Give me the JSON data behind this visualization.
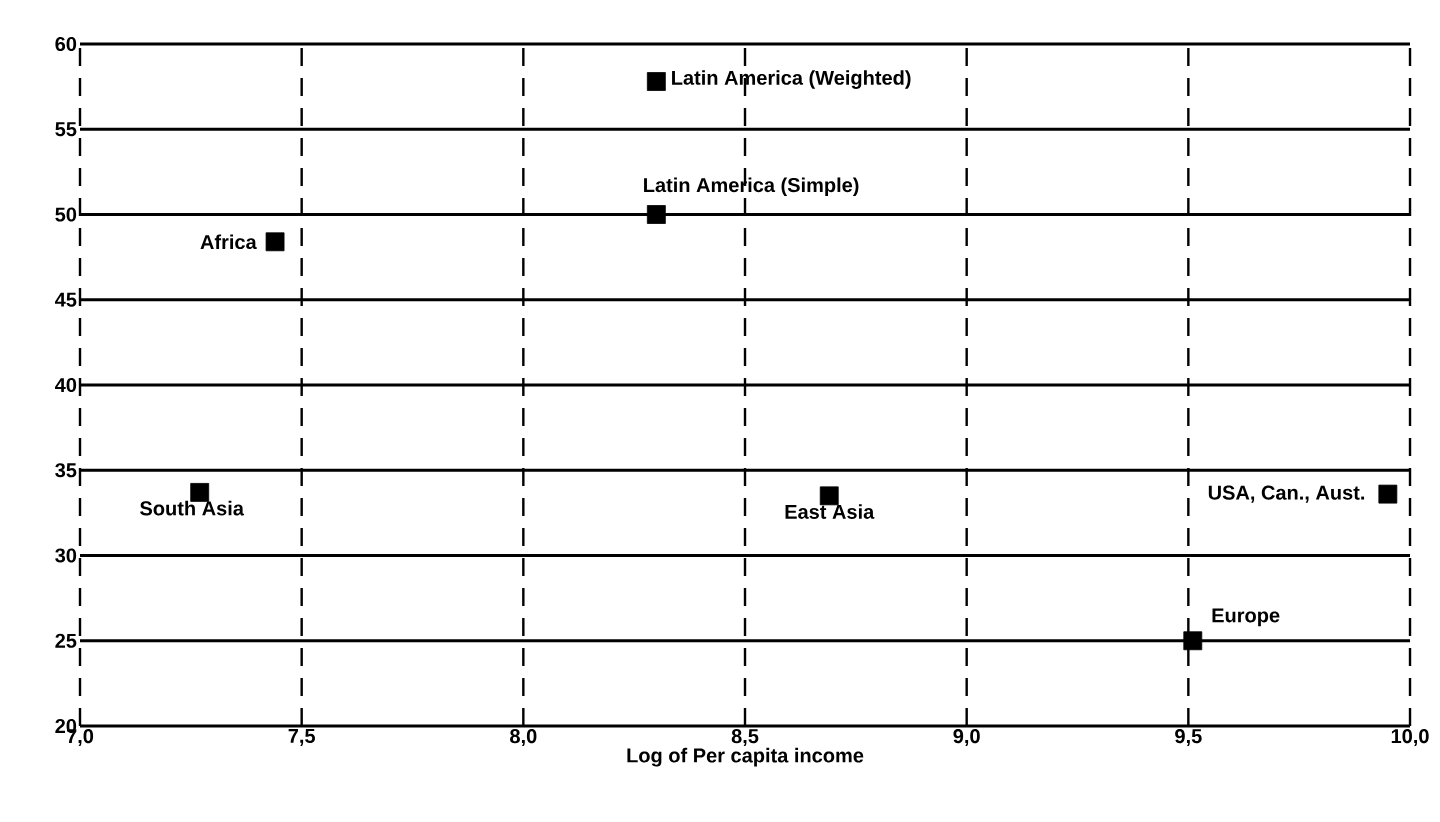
{
  "chart_data": {
    "type": "scatter",
    "xlabel": "Log of Per capita income",
    "x": [
      8.3,
      8.3,
      7.44,
      7.27,
      8.69,
      9.95,
      9.51
    ],
    "values": [
      57.8,
      50.0,
      48.4,
      33.7,
      33.5,
      33.6,
      25.0
    ],
    "color": "#000000",
    "marker": "square",
    "grid": true,
    "xlim": [
      7,
      10
    ],
    "ylim": [
      20,
      60
    ],
    "xticks": [
      {
        "value": 7,
        "label": "7,0"
      },
      {
        "value": 7.5,
        "label": "7,5"
      },
      {
        "value": 8,
        "label": "8,0"
      },
      {
        "value": 8.5,
        "label": "8,5"
      },
      {
        "value": 9,
        "label": "9,0"
      },
      {
        "value": 9.5,
        "label": "9,5"
      },
      {
        "value": 10,
        "label": "10,0"
      }
    ],
    "yticks": [
      20,
      25,
      30,
      35,
      40,
      45,
      50,
      55,
      60
    ],
    "annotations": [
      {
        "text": "Latin America (Weighted)",
        "x": 8.3,
        "y": 57.8
      },
      {
        "text": "Latin America (Simple)",
        "x": 8.3,
        "y": 50.0
      },
      {
        "text": "Africa",
        "x": 7.44,
        "y": 48.4
      },
      {
        "text": "South Asia",
        "x": 7.27,
        "y": 33.7
      },
      {
        "text": "East Asia",
        "x": 8.69,
        "y": 33.5
      },
      {
        "text": "USA, Can., Aust.",
        "x": 9.95,
        "y": 33.6
      },
      {
        "text": "Europe",
        "x": 9.51,
        "y": 25.0
      }
    ]
  }
}
